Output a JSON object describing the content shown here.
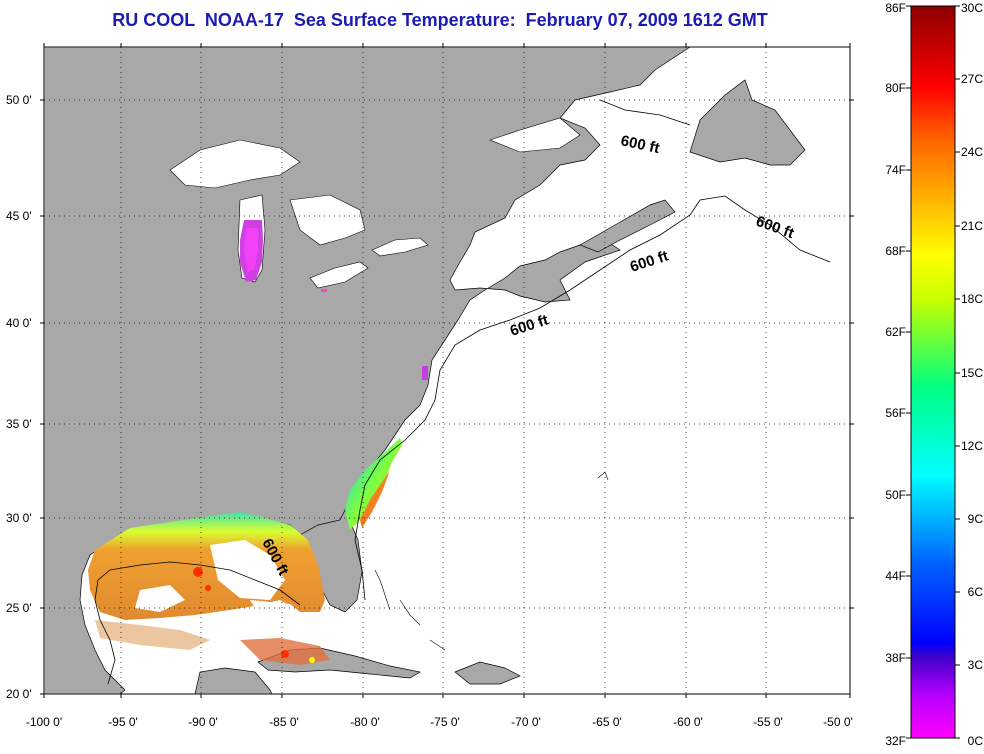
{
  "title": "RU COOL  NOAA-17  Sea Surface Temperature:  February 07, 2009 1612 GMT",
  "longitude_ticks": [
    "-100 0'",
    "-95 0'",
    "-90 0'",
    "-85 0'",
    "-80 0'",
    "-75 0'",
    "-70 0'",
    "-65 0'",
    "-60 0'",
    "-55 0'",
    "-50 0'"
  ],
  "latitude_ticks": [
    "50 0'",
    "45 0'",
    "40 0'",
    "35 0'",
    "30 0'",
    "25 0'",
    "20 0'"
  ],
  "isobath": {
    "label": "600 ft"
  },
  "isobath_labels": [
    "600 ft",
    "600 ft",
    "600 ft",
    "600 ft",
    "600 ft"
  ],
  "colorbar": {
    "fahrenheit": [
      "86F",
      "80F",
      "74F",
      "68F",
      "62F",
      "56F",
      "50F",
      "44F",
      "38F",
      "32F"
    ],
    "celsius": [
      "30C",
      "27C",
      "24C",
      "21C",
      "18C",
      "15C",
      "12C",
      "9C",
      "6C",
      "3C",
      "0C"
    ]
  },
  "colors": {
    "land": "#a8a8a8",
    "ocean": "#ffffff",
    "title": "#1c1cb4"
  }
}
